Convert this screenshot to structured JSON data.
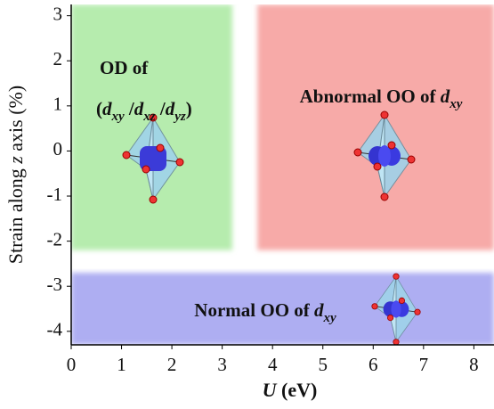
{
  "chart_data": {
    "type": "phase-diagram",
    "xlim": [
      0,
      8.4
    ],
    "ylim": [
      -4.3,
      3.25
    ],
    "xticks": [
      0,
      1,
      2,
      3,
      4,
      5,
      6,
      7,
      8
    ],
    "yticks": [
      3,
      2,
      1,
      0,
      -1,
      -2,
      -3,
      -4
    ],
    "xlabel": [
      {
        "t": "U",
        "style": "italic"
      },
      {
        "t": " (eV)",
        "style": "normal"
      }
    ],
    "ylabel": [
      {
        "t": "Strain along ",
        "style": "normal"
      },
      {
        "t": "z",
        "style": "italic"
      },
      {
        "t": " axis (%)",
        "style": "normal"
      }
    ],
    "regions": [
      {
        "color": "#b6ecae",
        "x": [
          0,
          3.2
        ],
        "y": [
          -2.2,
          3.25
        ],
        "label": [
          [
            {
              "t": "OD of",
              "style": "normal"
            }
          ],
          [
            {
              "t": "(",
              "style": "normal"
            },
            {
              "t": "d",
              "style": "italic"
            },
            {
              "t": "xy",
              "style": "sub"
            },
            {
              "t": " /",
              "style": "normal"
            },
            {
              "t": "d",
              "style": "italic"
            },
            {
              "t": "xz",
              "style": "sub"
            },
            {
              "t": " /",
              "style": "normal"
            },
            {
              "t": "d",
              "style": "italic"
            },
            {
              "t": "yz",
              "style": "sub"
            },
            {
              "t": ")",
              "style": "normal"
            }
          ]
        ]
      },
      {
        "color": "#f7aaa8",
        "x": [
          3.7,
          8.4
        ],
        "y": [
          -2.2,
          3.25
        ],
        "label": [
          [
            {
              "t": "Abnormal OO of ",
              "style": "normal"
            },
            {
              "t": "d",
              "style": "italic"
            },
            {
              "t": "xy",
              "style": "sub"
            }
          ]
        ]
      },
      {
        "color": "#aeaef2",
        "x": [
          0,
          8.4
        ],
        "y": [
          -4.3,
          -2.7
        ],
        "label": [
          [
            {
              "t": "Normal OO of ",
              "style": "normal"
            },
            {
              "t": "d",
              "style": "italic"
            },
            {
              "t": "xy",
              "style": "sub"
            }
          ]
        ]
      }
    ]
  }
}
